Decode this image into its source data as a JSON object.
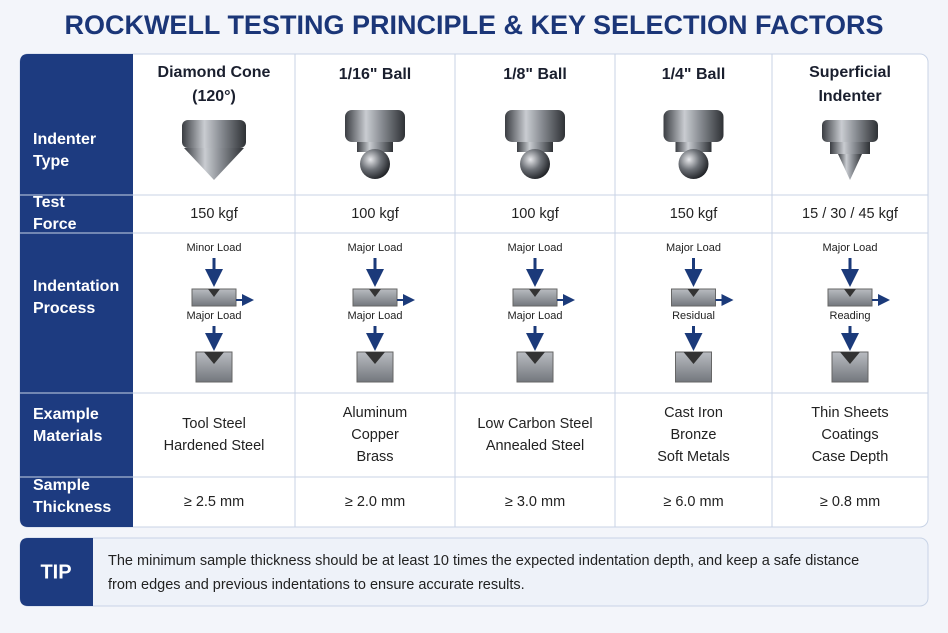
{
  "title": "ROCKWELL TESTING PRINCIPLE & KEY SELECTION FACTORS",
  "table": {
    "row_labels": [
      [
        "Indenter",
        "Type"
      ],
      [
        "Test",
        "Force"
      ],
      [
        "Indentation",
        "Process"
      ],
      [
        "Example",
        "Materials"
      ],
      [
        "Sample",
        "Thickness"
      ]
    ],
    "columns": [
      {
        "name": [
          "Diamond Cone",
          "(120°)"
        ],
        "force": "150 kgf",
        "process_top": "Minor Load",
        "process_bottom": "Major Load",
        "materials": [
          "Tool Steel",
          "Hardened Steel"
        ],
        "thickness": "≥ 2.5 mm"
      },
      {
        "name": [
          "1/16\" Ball"
        ],
        "force": "100 kgf",
        "process_top": "Major Load",
        "process_bottom": "Major Load",
        "materials": [
          "Aluminum",
          "Copper",
          "Brass"
        ],
        "thickness": "≥ 2.0 mm"
      },
      {
        "name": [
          "1/8\" Ball"
        ],
        "force": "100 kgf",
        "process_top": "Major Load",
        "process_bottom": "Major Load",
        "materials": [
          "Low Carbon Steel",
          "Annealed Steel"
        ],
        "thickness": "≥ 3.0 mm"
      },
      {
        "name": [
          "1/4\" Ball"
        ],
        "force": "150 kgf",
        "process_top": "Major Load",
        "process_bottom": "Residual",
        "materials": [
          "Cast Iron",
          "Bronze",
          "Soft Metals"
        ],
        "thickness": "≥ 6.0 mm"
      },
      {
        "name": [
          "Superficial",
          "Indenter"
        ],
        "force": "15 / 30 / 45 kgf",
        "process_top": "Major Load",
        "process_bottom": "Reading",
        "materials": [
          "Thin Sheets",
          "Coatings",
          "Case Depth"
        ],
        "thickness": "≥ 0.8 mm"
      }
    ]
  },
  "tip": {
    "label": "TIP",
    "lines": [
      "The minimum sample thickness should be at least 10 times the expected indentation depth, and keep a safe distance",
      "from edges and previous indentations to ensure accurate results."
    ]
  }
}
